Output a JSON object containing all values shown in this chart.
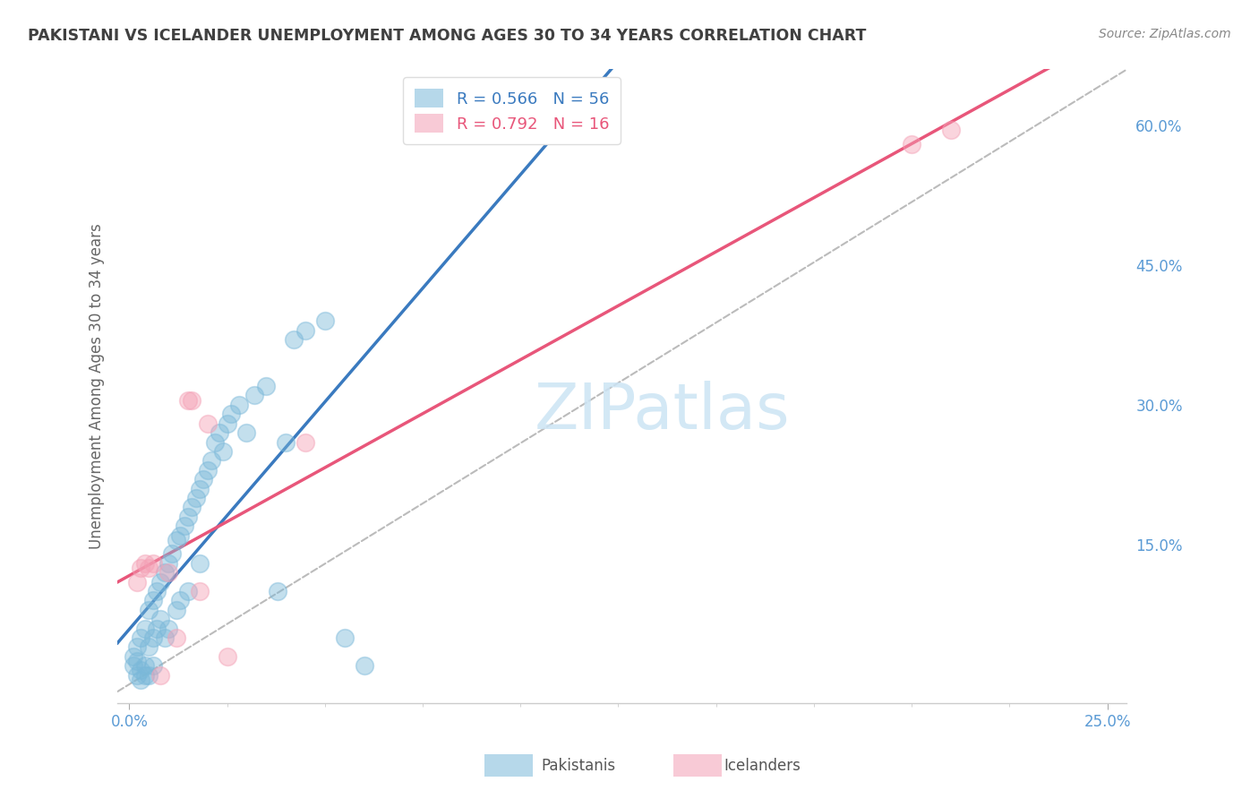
{
  "title": "PAKISTANI VS ICELANDER UNEMPLOYMENT AMONG AGES 30 TO 34 YEARS CORRELATION CHART",
  "source": "Source: ZipAtlas.com",
  "ylabel": "Unemployment Among Ages 30 to 34 years",
  "xlim_min": -0.003,
  "xlim_max": 0.255,
  "ylim_min": -0.02,
  "ylim_max": 0.66,
  "pakistani_R": 0.566,
  "pakistani_N": 56,
  "icelander_R": 0.792,
  "icelander_N": 16,
  "pakistani_color": "#7ab8d9",
  "icelander_color": "#f4a0b5",
  "pakistani_line_color": "#3a7abf",
  "icelander_line_color": "#e8567a",
  "diagonal_color": "#bbbbbb",
  "background_color": "#ffffff",
  "grid_color": "#dddddd",
  "watermark": "ZIPatlas",
  "pakistani_x": [
    0.001,
    0.001,
    0.002,
    0.002,
    0.002,
    0.003,
    0.003,
    0.003,
    0.004,
    0.004,
    0.004,
    0.005,
    0.005,
    0.005,
    0.006,
    0.006,
    0.006,
    0.007,
    0.007,
    0.008,
    0.008,
    0.009,
    0.009,
    0.01,
    0.01,
    0.011,
    0.012,
    0.012,
    0.013,
    0.013,
    0.014,
    0.015,
    0.015,
    0.016,
    0.017,
    0.018,
    0.018,
    0.019,
    0.02,
    0.021,
    0.022,
    0.023,
    0.024,
    0.025,
    0.026,
    0.028,
    0.03,
    0.032,
    0.035,
    0.038,
    0.04,
    0.042,
    0.045,
    0.05,
    0.055,
    0.06
  ],
  "pakistani_y": [
    0.02,
    0.03,
    0.025,
    0.04,
    0.01,
    0.05,
    0.015,
    0.005,
    0.06,
    0.02,
    0.01,
    0.08,
    0.04,
    0.01,
    0.09,
    0.05,
    0.02,
    0.1,
    0.06,
    0.11,
    0.07,
    0.12,
    0.05,
    0.13,
    0.06,
    0.14,
    0.155,
    0.08,
    0.16,
    0.09,
    0.17,
    0.18,
    0.1,
    0.19,
    0.2,
    0.21,
    0.13,
    0.22,
    0.23,
    0.24,
    0.26,
    0.27,
    0.25,
    0.28,
    0.29,
    0.3,
    0.27,
    0.31,
    0.32,
    0.1,
    0.26,
    0.37,
    0.38,
    0.39,
    0.05,
    0.02
  ],
  "icelander_x": [
    0.002,
    0.003,
    0.004,
    0.005,
    0.006,
    0.008,
    0.01,
    0.012,
    0.015,
    0.016,
    0.018,
    0.02,
    0.025,
    0.045,
    0.2,
    0.21
  ],
  "icelander_y": [
    0.11,
    0.125,
    0.13,
    0.125,
    0.13,
    0.01,
    0.12,
    0.05,
    0.305,
    0.305,
    0.1,
    0.28,
    0.03,
    0.26,
    0.58,
    0.595
  ],
  "y_ticks": [
    0.0,
    0.15,
    0.3,
    0.45,
    0.6
  ],
  "y_tick_labels": [
    "",
    "15.0%",
    "30.0%",
    "45.0%",
    "60.0%"
  ],
  "x_tick_positions": [
    0.0,
    0.25
  ],
  "x_tick_labels": [
    "0.0%",
    "25.0%"
  ],
  "tick_color": "#5b9bd5",
  "title_color": "#404040",
  "source_color": "#888888",
  "ylabel_color": "#666666"
}
